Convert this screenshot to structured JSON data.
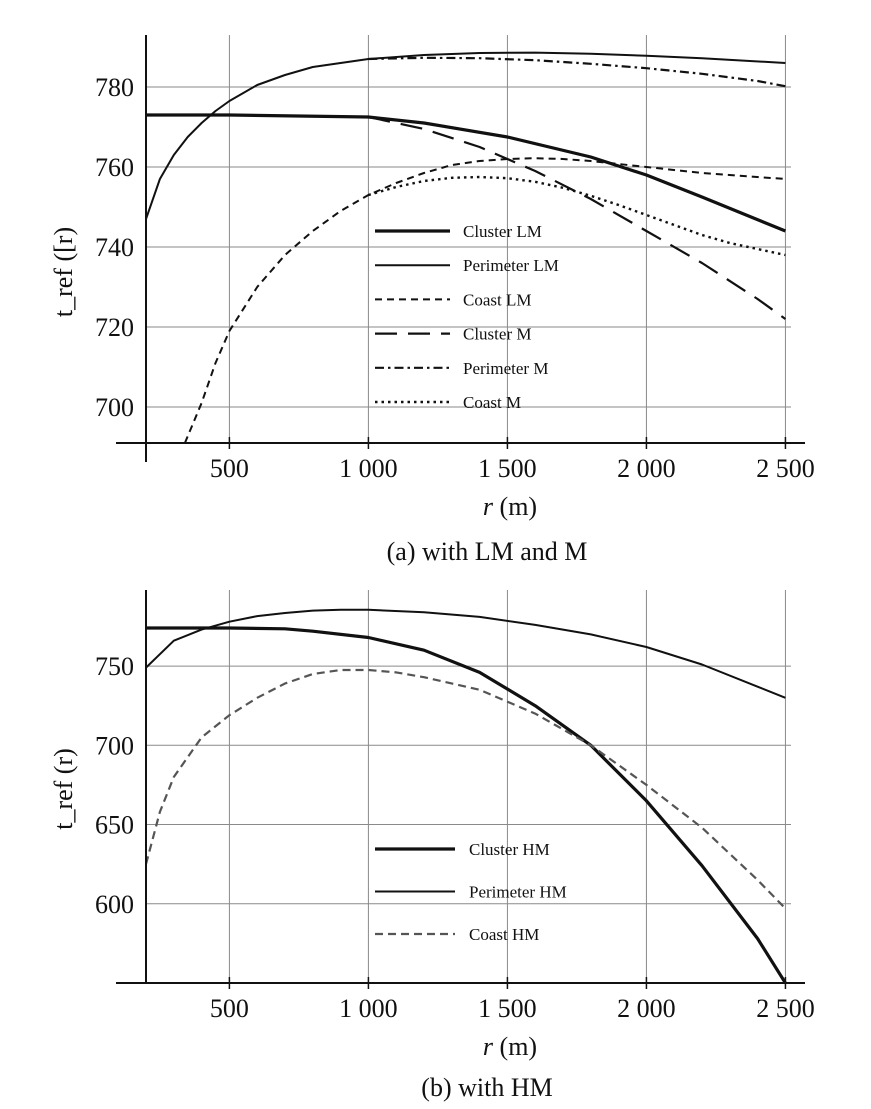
{
  "colors": {
    "ink": "#111111",
    "grid": "#8a8a8a",
    "coast_hm": "#555555",
    "background": "#ffffff"
  },
  "chart_data": [
    {
      "type": "line",
      "caption": "(a) with LM and M",
      "xlabel_var": "r",
      "xlabel_unit": " (m)",
      "ylabel": "t_ref ([r)",
      "xlim": [
        200,
        2520
      ],
      "ylim": [
        691,
        793
      ],
      "grid": true,
      "legend_position": "center-right",
      "x_ticks": [
        {
          "value": 500,
          "label": "500"
        },
        {
          "value": 1000,
          "label": "1 000"
        },
        {
          "value": 1500,
          "label": "1 500"
        },
        {
          "value": 2000,
          "label": "2 000"
        },
        {
          "value": 2500,
          "label": "2 500"
        }
      ],
      "y_ticks": [
        {
          "value": 700,
          "label": "700"
        },
        {
          "value": 720,
          "label": "720"
        },
        {
          "value": 740,
          "label": "740"
        },
        {
          "value": 760,
          "label": "760"
        },
        {
          "value": 780,
          "label": "780"
        }
      ],
      "series": [
        {
          "name": "Cluster LM",
          "style": "thick-solid",
          "x": [
            200,
            500,
            1000,
            1200,
            1500,
            1800,
            2000,
            2200,
            2500
          ],
          "y": [
            773,
            773,
            772.5,
            771,
            767.5,
            762.5,
            758,
            752.5,
            744
          ]
        },
        {
          "name": "Perimeter LM",
          "style": "solid",
          "x": [
            200,
            250,
            300,
            350,
            400,
            450,
            500,
            600,
            700,
            800,
            1000,
            1200,
            1400,
            1600,
            1800,
            2000,
            2200,
            2500
          ],
          "y": [
            747,
            757,
            763,
            767.5,
            771,
            774,
            776.5,
            780.5,
            783,
            785,
            787,
            788,
            788.5,
            788.6,
            788.3,
            787.8,
            787.2,
            786
          ]
        },
        {
          "name": "Coast LM",
          "style": "short-dash",
          "x": [
            340,
            400,
            450,
            500,
            600,
            700,
            800,
            900,
            1000,
            1100,
            1200,
            1300,
            1400,
            1500,
            1600,
            1700,
            1800,
            2000,
            2200,
            2500
          ],
          "y": [
            691,
            701,
            711,
            719,
            730,
            738,
            744,
            749,
            753,
            756,
            758.5,
            760.5,
            761.5,
            762,
            762.2,
            762,
            761.5,
            760,
            758.5,
            757
          ]
        },
        {
          "name": "Cluster M",
          "style": "long-dash",
          "x": [
            1000,
            1200,
            1400,
            1600,
            1800,
            2000,
            2200,
            2400,
            2500
          ],
          "y": [
            772.5,
            769.5,
            765,
            759,
            752,
            744,
            736,
            727,
            722
          ]
        },
        {
          "name": "Perimeter M",
          "style": "dash-dot",
          "x": [
            1000,
            1200,
            1400,
            1600,
            1800,
            2000,
            2200,
            2400,
            2500
          ],
          "y": [
            787,
            787.3,
            787.2,
            786.7,
            785.8,
            784.7,
            783.3,
            781.5,
            780.2
          ]
        },
        {
          "name": "Coast M",
          "style": "dotted",
          "x": [
            1000,
            1100,
            1200,
            1300,
            1400,
            1500,
            1600,
            1700,
            1800,
            1900,
            2000,
            2100,
            2200,
            2300,
            2400,
            2500
          ],
          "y": [
            753,
            755,
            756.5,
            757.3,
            757.5,
            757.2,
            756.3,
            754.8,
            752.8,
            750.5,
            748,
            745.5,
            743,
            741,
            739.5,
            738
          ]
        }
      ]
    },
    {
      "type": "line",
      "caption": "(b) with HM",
      "xlabel_var": "r",
      "xlabel_unit": " (m)",
      "ylabel": "t_ref (r)",
      "xlim": [
        200,
        2520
      ],
      "ylim": [
        550,
        798
      ],
      "grid": true,
      "legend_position": "bottom-center",
      "x_ticks": [
        {
          "value": 500,
          "label": "500"
        },
        {
          "value": 1000,
          "label": "1 000"
        },
        {
          "value": 1500,
          "label": "1 500"
        },
        {
          "value": 2000,
          "label": "2 000"
        },
        {
          "value": 2500,
          "label": "2 500"
        }
      ],
      "y_ticks": [
        {
          "value": 600,
          "label": "600"
        },
        {
          "value": 650,
          "label": "650"
        },
        {
          "value": 700,
          "label": "700"
        },
        {
          "value": 750,
          "label": "750"
        }
      ],
      "series": [
        {
          "name": "Cluster HM",
          "style": "thick-solid",
          "x": [
            200,
            300,
            500,
            700,
            800,
            1000,
            1200,
            1400,
            1600,
            1800,
            2000,
            2200,
            2400,
            2500
          ],
          "y": [
            774,
            774,
            774,
            773.5,
            772,
            768,
            760,
            746,
            725,
            700,
            665,
            624,
            578,
            550
          ]
        },
        {
          "name": "Perimeter HM",
          "style": "solid",
          "x": [
            200,
            300,
            400,
            500,
            600,
            700,
            800,
            900,
            1000,
            1200,
            1400,
            1600,
            1800,
            2000,
            2200,
            2400,
            2500
          ],
          "y": [
            749,
            766,
            773,
            778,
            781.5,
            783.5,
            785,
            785.5,
            785.5,
            784,
            781,
            776,
            770,
            762,
            751,
            737,
            730
          ]
        },
        {
          "name": "Coast HM",
          "style": "gray-dash",
          "x": [
            200,
            250,
            300,
            400,
            500,
            600,
            700,
            800,
            900,
            1000,
            1100,
            1200,
            1400,
            1600,
            1800,
            2000,
            2200,
            2400,
            2500
          ],
          "y": [
            625,
            658,
            680,
            705,
            719,
            730,
            739,
            745,
            747.5,
            747.5,
            746,
            743,
            735,
            720,
            700,
            675,
            648,
            615,
            597
          ]
        }
      ]
    }
  ]
}
